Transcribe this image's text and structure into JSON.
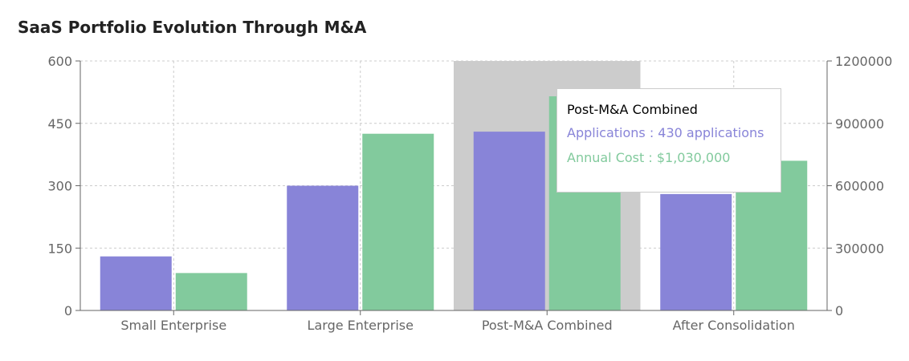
{
  "chart_data": {
    "type": "bar",
    "title": "SaaS Portfolio Evolution Through M&A",
    "categories": [
      "Small Enterprise",
      "Large Enterprise",
      "Post-M&A Combined",
      "After Consolidation"
    ],
    "series": [
      {
        "name": "Applications",
        "axis": "left",
        "color": "#8884d8",
        "values": [
          130,
          300,
          430,
          280
        ]
      },
      {
        "name": "Annual Cost",
        "axis": "right",
        "color": "#82ca9d",
        "values": [
          180000,
          850000,
          1030000,
          720000
        ]
      }
    ],
    "y_left": {
      "min": 0,
      "max": 600,
      "ticks": [
        "0",
        "150",
        "300",
        "450",
        "600"
      ]
    },
    "y_right": {
      "min": 0,
      "max": 1200000,
      "ticks": [
        "0",
        "300000",
        "600000",
        "900000",
        "1200000"
      ]
    },
    "grid": true,
    "highlighted_category": "Post-M&A Combined",
    "highlight_color": "#cccccc",
    "tooltip": {
      "title": "Post-M&A Combined",
      "rows": [
        {
          "text": "Applications : 430 applications",
          "color": "#8884d8"
        },
        {
          "text": "Annual Cost : $1,030,000",
          "color": "#82ca9d"
        }
      ]
    }
  }
}
